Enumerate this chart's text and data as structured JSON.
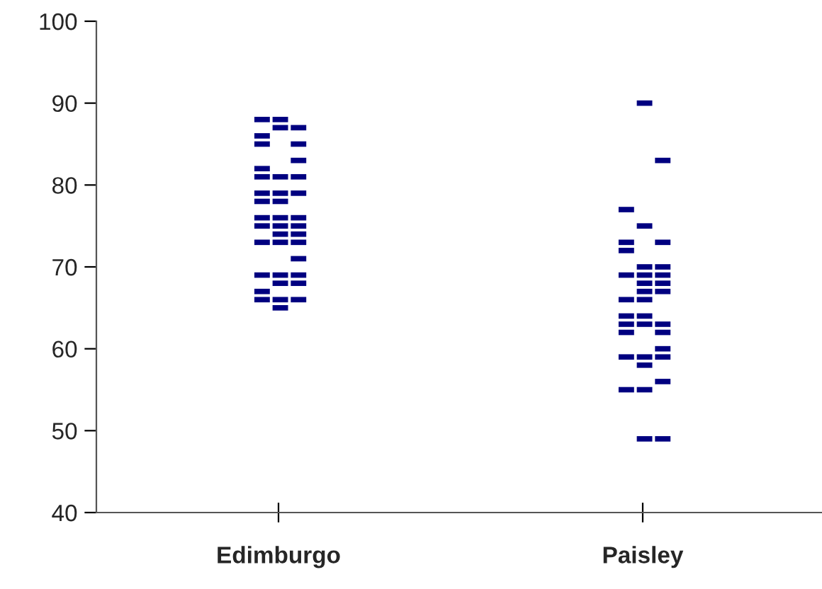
{
  "chart_data": {
    "type": "scatter",
    "categories": [
      "Edimburgo",
      "Paisley"
    ],
    "ylim": [
      40,
      100
    ],
    "yticks": [
      40,
      50,
      60,
      70,
      80,
      90,
      100
    ],
    "grid": false,
    "marker": "square",
    "legend": false,
    "series": [
      {
        "color": "#000080",
        "x": [
          "Edimburgo",
          "Edimburgo",
          "Edimburgo",
          "Edimburgo",
          "Edimburgo",
          "Edimburgo",
          "Edimburgo",
          "Edimburgo",
          "Edimburgo",
          "Edimburgo",
          "Edimburgo",
          "Edimburgo",
          "Edimburgo",
          "Paisley",
          "Paisley",
          "Paisley",
          "Paisley",
          "Paisley",
          "Paisley",
          "Paisley",
          "Paisley",
          "Paisley",
          "Paisley"
        ],
        "values": [
          88,
          86,
          85,
          82,
          81,
          79,
          78,
          76,
          75,
          73,
          69,
          67,
          66,
          77,
          73,
          72,
          69,
          66,
          64,
          63,
          62,
          59,
          55
        ]
      },
      {
        "color": "#000080",
        "x": [
          "Edimburgo",
          "Edimburgo",
          "Edimburgo",
          "Edimburgo",
          "Edimburgo",
          "Edimburgo",
          "Edimburgo",
          "Edimburgo",
          "Edimburgo",
          "Edimburgo",
          "Edimburgo",
          "Edimburgo",
          "Edimburgo",
          "Paisley",
          "Paisley",
          "Paisley",
          "Paisley",
          "Paisley",
          "Paisley",
          "Paisley",
          "Paisley",
          "Paisley",
          "Paisley",
          "Paisley",
          "Paisley",
          "Paisley"
        ],
        "values": [
          88,
          87,
          81,
          79,
          78,
          76,
          75,
          74,
          73,
          69,
          68,
          66,
          65,
          90,
          75,
          70,
          69,
          68,
          67,
          66,
          64,
          63,
          59,
          58,
          55,
          49
        ]
      },
      {
        "color": "#000080",
        "x": [
          "Edimburgo",
          "Edimburgo",
          "Edimburgo",
          "Edimburgo",
          "Edimburgo",
          "Edimburgo",
          "Edimburgo",
          "Edimburgo",
          "Edimburgo",
          "Edimburgo",
          "Edimburgo",
          "Edimburgo",
          "Edimburgo",
          "Paisley",
          "Paisley",
          "Paisley",
          "Paisley",
          "Paisley",
          "Paisley",
          "Paisley",
          "Paisley",
          "Paisley",
          "Paisley",
          "Paisley",
          "Paisley"
        ],
        "values": [
          87,
          85,
          83,
          81,
          79,
          76,
          75,
          74,
          73,
          71,
          69,
          68,
          66,
          83,
          73,
          70,
          69,
          68,
          67,
          63,
          62,
          60,
          59,
          56,
          49
        ]
      }
    ]
  }
}
